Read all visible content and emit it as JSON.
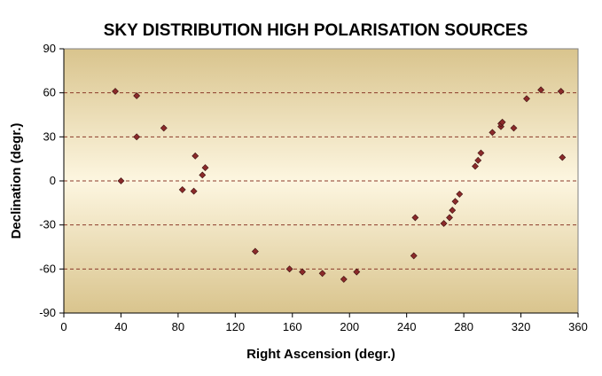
{
  "chart_data": {
    "type": "scatter",
    "title": "SKY DISTRIBUTION HIGH POLARISATION SOURCES",
    "xlabel": "Right Ascension (degr.)",
    "ylabel": "Declination (degr.)",
    "xlim": [
      0,
      360
    ],
    "ylim": [
      -90,
      90
    ],
    "xticks": [
      0,
      40,
      80,
      120,
      160,
      200,
      240,
      280,
      320,
      360
    ],
    "yticks": [
      -90,
      -60,
      -30,
      0,
      30,
      60,
      90
    ],
    "xtick_labels": [
      "0",
      "40",
      "80",
      "120",
      "160",
      "200",
      "240",
      "280",
      "320",
      "360"
    ],
    "ytick_labels": [
      "-90",
      "-60",
      "-30",
      "0",
      "30",
      "60",
      "90"
    ],
    "grid": "dashed horizontal",
    "legend": "none",
    "colors": {
      "plot_gradient_top": "#d9c48d",
      "plot_gradient_mid": "#fdf6e0",
      "plot_gradient_bottom": "#d9c48d",
      "marker": "#8b2a2a",
      "gridline": "#8b3a2a"
    },
    "series": [
      {
        "marker": "diamond",
        "points": [
          [
            36,
            61
          ],
          [
            40,
            0
          ],
          [
            51,
            58
          ],
          [
            51,
            30
          ],
          [
            70,
            36
          ],
          [
            83,
            -6
          ],
          [
            91,
            -7
          ],
          [
            92,
            17
          ],
          [
            97,
            4
          ],
          [
            99,
            9
          ],
          [
            134,
            -48
          ],
          [
            158,
            -60
          ],
          [
            167,
            -62
          ],
          [
            181,
            -63
          ],
          [
            196,
            -67
          ],
          [
            205,
            -62
          ],
          [
            245,
            -51
          ],
          [
            246,
            -25
          ],
          [
            266,
            -29
          ],
          [
            270,
            -25
          ],
          [
            272,
            -20
          ],
          [
            274,
            -14
          ],
          [
            277,
            -9
          ],
          [
            288,
            10
          ],
          [
            290,
            14
          ],
          [
            292,
            19
          ],
          [
            300,
            33
          ],
          [
            306,
            37
          ],
          [
            306,
            39
          ],
          [
            307,
            40
          ],
          [
            315,
            36
          ],
          [
            324,
            56
          ],
          [
            334,
            62
          ],
          [
            348,
            61
          ],
          [
            349,
            16
          ]
        ]
      }
    ]
  }
}
